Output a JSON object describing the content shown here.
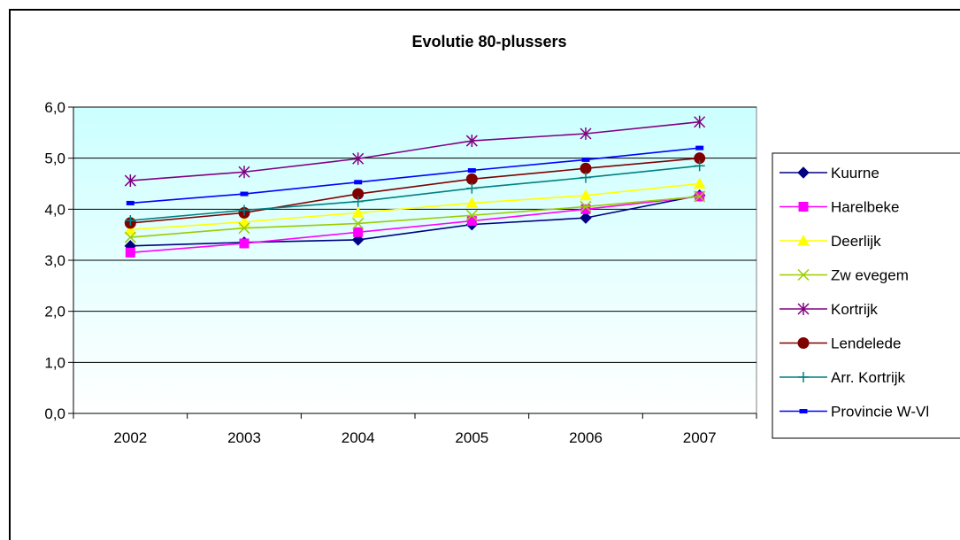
{
  "chart_data": {
    "type": "line",
    "title": "Evolutie 80-plussers",
    "xlabel": "",
    "ylabel": "",
    "categories": [
      "2002",
      "2003",
      "2004",
      "2005",
      "2006",
      "2007"
    ],
    "ylim": [
      0,
      6
    ],
    "yticks": [
      "0,0",
      "1,0",
      "2,0",
      "3,0",
      "4,0",
      "5,0",
      "6,0"
    ],
    "grid": "horizontal",
    "legend_position": "right",
    "plot_background": "gradient light cyan to white",
    "series": [
      {
        "name": "Kuurne",
        "color": "#000080",
        "marker": "diamond",
        "values": [
          3.28,
          3.35,
          3.4,
          3.7,
          3.83,
          4.27
        ]
      },
      {
        "name": "Harelbeke",
        "color": "#FF00FF",
        "marker": "square",
        "values": [
          3.15,
          3.33,
          3.55,
          3.77,
          4.0,
          4.25
        ]
      },
      {
        "name": "Deerlijk",
        "color": "#FFFF00",
        "marker": "triangle",
        "values": [
          3.6,
          3.75,
          3.93,
          4.12,
          4.27,
          4.5
        ]
      },
      {
        "name": "Zw evegem",
        "color": "#99CC00",
        "marker": "x",
        "values": [
          3.45,
          3.63,
          3.72,
          3.88,
          4.05,
          4.25
        ]
      },
      {
        "name": "Kortrijk",
        "color": "#800080",
        "marker": "star",
        "values": [
          4.56,
          4.73,
          4.99,
          5.34,
          5.48,
          5.71
        ]
      },
      {
        "name": "Lendelede",
        "color": "#800000",
        "marker": "circle",
        "values": [
          3.73,
          3.93,
          4.3,
          4.59,
          4.8,
          5.0
        ]
      },
      {
        "name": "Arr. Kortrijk",
        "color": "#008080",
        "marker": "plus",
        "values": [
          3.78,
          3.98,
          4.15,
          4.41,
          4.62,
          4.85
        ]
      },
      {
        "name": "Provincie W-Vl",
        "color": "#0000FF",
        "marker": "dash",
        "values": [
          4.12,
          4.3,
          4.53,
          4.76,
          4.97,
          5.2
        ]
      }
    ]
  }
}
